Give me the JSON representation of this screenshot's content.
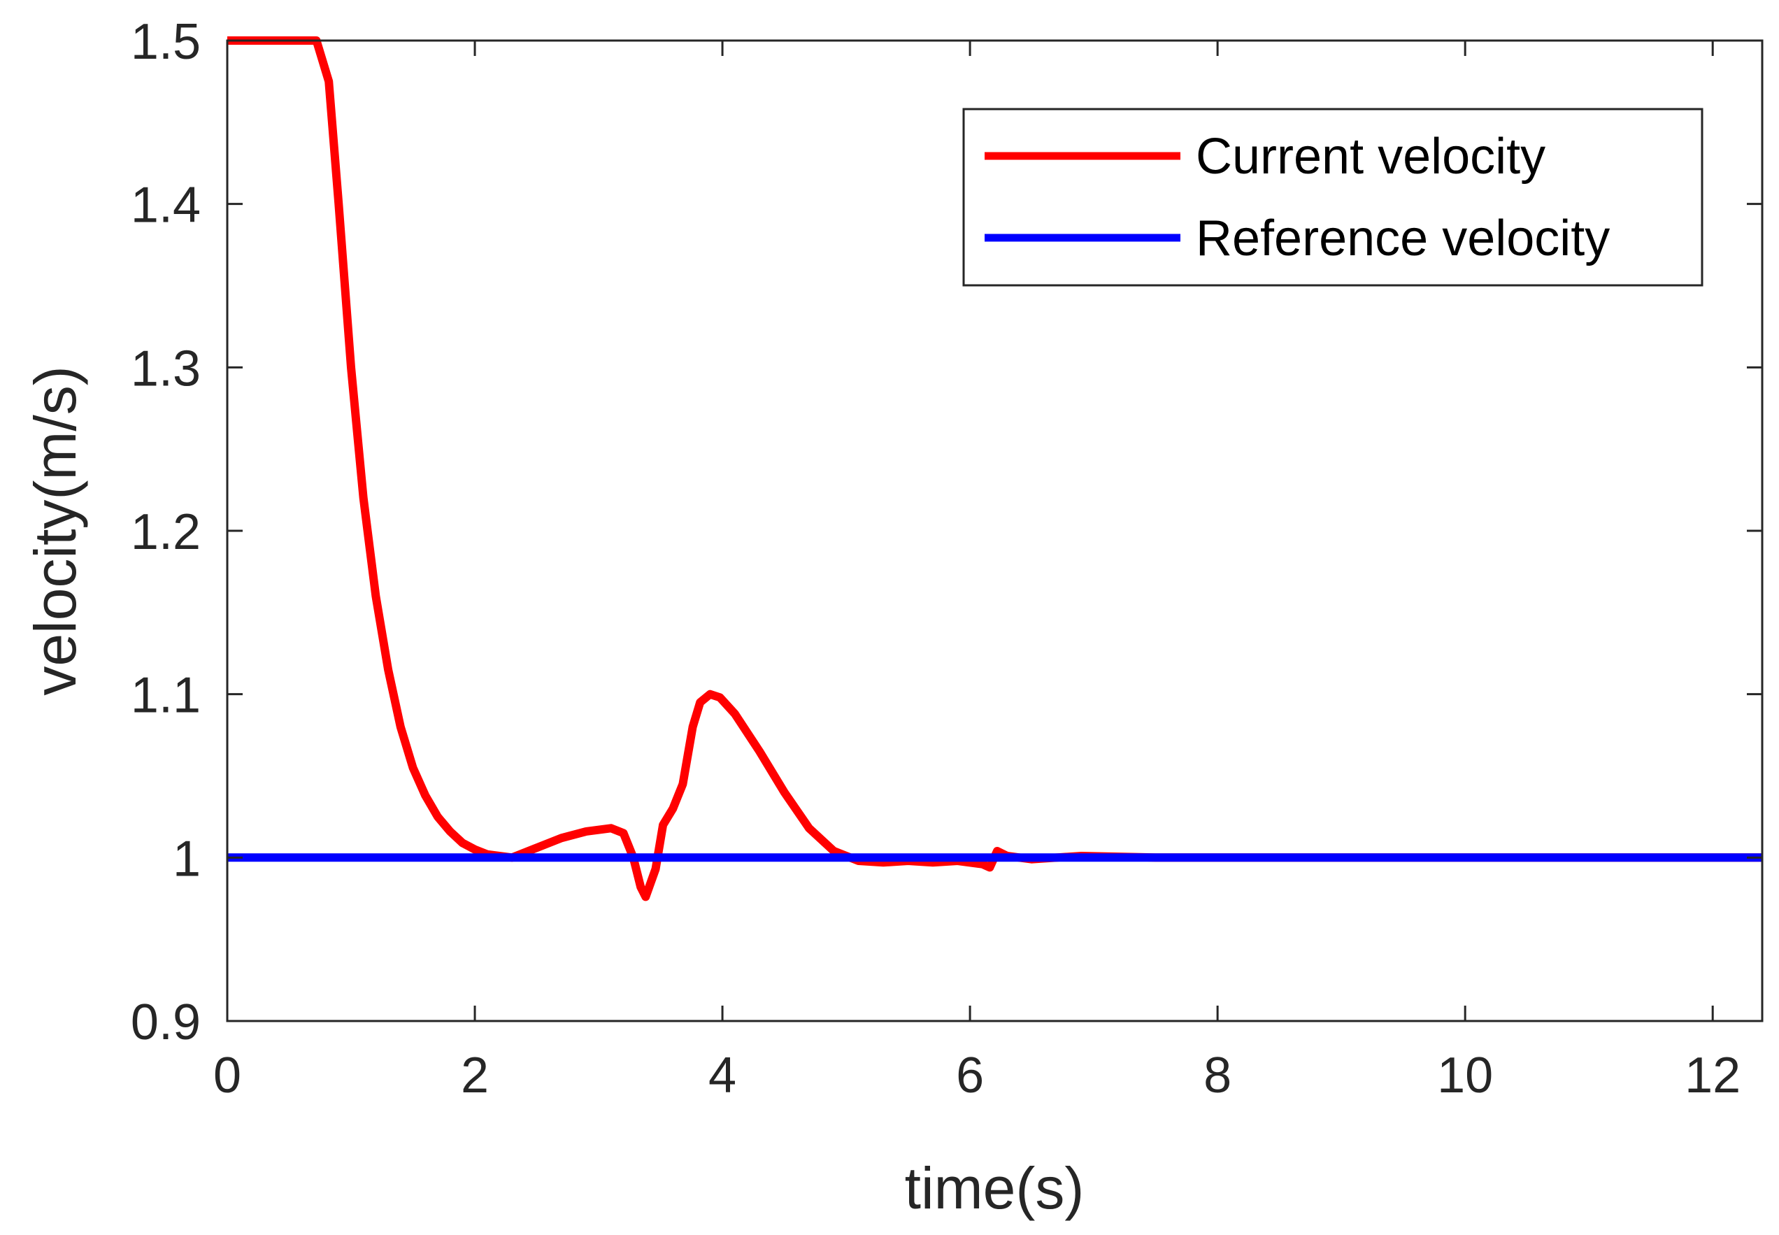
{
  "chart_data": {
    "type": "line",
    "title": "",
    "xlabel": "time(s)",
    "ylabel": "velocity(m/s)",
    "xlim": [
      0,
      12.4
    ],
    "ylim": [
      0.9,
      1.5
    ],
    "xticks": [
      0,
      2,
      4,
      6,
      8,
      10,
      12
    ],
    "xtick_labels": [
      "0",
      "2",
      "4",
      "6",
      "8",
      "10",
      "12"
    ],
    "yticks": [
      0.9,
      1.0,
      1.1,
      1.2,
      1.3,
      1.4,
      1.5
    ],
    "ytick_labels": [
      "0.9",
      "1",
      "1.1",
      "1.2",
      "1.3",
      "1.4",
      "1.5"
    ],
    "grid": false,
    "legend_position": "top-right",
    "series": [
      {
        "name": "Current velocity",
        "color": "#ff0000",
        "x": [
          0,
          0.72,
          0.82,
          0.9,
          1.0,
          1.1,
          1.2,
          1.3,
          1.4,
          1.5,
          1.6,
          1.7,
          1.8,
          1.9,
          2.0,
          2.1,
          2.3,
          2.5,
          2.7,
          2.9,
          3.1,
          3.2,
          3.28,
          3.34,
          3.38,
          3.46,
          3.52,
          3.6,
          3.68,
          3.76,
          3.82,
          3.9,
          3.98,
          4.1,
          4.3,
          4.5,
          4.7,
          4.9,
          5.1,
          5.3,
          5.5,
          5.7,
          5.9,
          6.1,
          6.16,
          6.22,
          6.3,
          6.5,
          6.9,
          7.5,
          12.4
        ],
        "y": [
          1.5,
          1.5,
          1.475,
          1.4,
          1.3,
          1.22,
          1.16,
          1.115,
          1.08,
          1.055,
          1.038,
          1.025,
          1.016,
          1.009,
          1.005,
          1.002,
          1.0,
          1.006,
          1.012,
          1.016,
          1.018,
          1.015,
          1.0,
          0.982,
          0.976,
          0.993,
          1.02,
          1.03,
          1.045,
          1.08,
          1.095,
          1.1,
          1.098,
          1.088,
          1.065,
          1.04,
          1.018,
          1.004,
          0.998,
          0.997,
          0.998,
          0.997,
          0.998,
          0.996,
          0.994,
          1.004,
          1.001,
          0.999,
          1.001,
          1.0,
          1.0
        ]
      },
      {
        "name": "Reference velocity",
        "color": "#0000ff",
        "x": [
          0,
          12.4
        ],
        "y": [
          1.0,
          1.0
        ]
      }
    ]
  }
}
